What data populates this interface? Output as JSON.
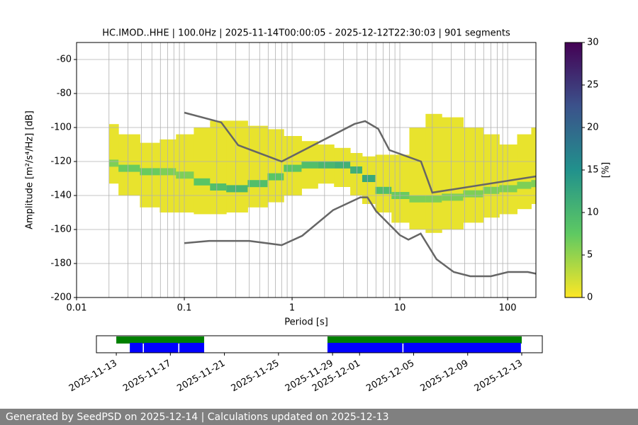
{
  "chart_data": {
    "type": "ppsd",
    "title": "HC.IMOD..HHE | 100.0Hz | 2025-11-14T00:00:05 - 2025-12-12T22:30:03 | 901 segments",
    "xlabel": "Period [s]",
    "ylabel": "Amplitude [m²/s⁴/Hz] [dB]",
    "xscale": "log",
    "xlim": [
      0.01,
      183
    ],
    "xticks": [
      0.01,
      0.1,
      1,
      10,
      100
    ],
    "xgrid": [
      0.02,
      0.03,
      0.04,
      0.05,
      0.06,
      0.07,
      0.08,
      0.09,
      0.1,
      0.2,
      0.3,
      0.4,
      0.5,
      0.6,
      0.7,
      0.8,
      0.9,
      1,
      2,
      3,
      4,
      5,
      6,
      7,
      8,
      9,
      10,
      20,
      30,
      40,
      50,
      60,
      70,
      80,
      90,
      100
    ],
    "ylim": [
      -200,
      -50
    ],
    "yticks": [
      -200,
      -180,
      -160,
      -140,
      -120,
      -100,
      -80,
      -60
    ],
    "grid": true,
    "colorbar": {
      "label": "[%]",
      "lim": [
        0,
        30
      ],
      "ticks": [
        0,
        5,
        10,
        15,
        20,
        25,
        30
      ],
      "colormap": [
        "#fde725",
        "#5ec962",
        "#21918c",
        "#3b528b",
        "#440154"
      ]
    },
    "density": {
      "periods": [
        0.02,
        0.03,
        0.05,
        0.07,
        0.1,
        0.15,
        0.2,
        0.3,
        0.5,
        0.7,
        1,
        1.5,
        2,
        3,
        4,
        5,
        7,
        10,
        15,
        20,
        30,
        50,
        70,
        100,
        150,
        183
      ],
      "upper": [
        -98,
        -104,
        -109,
        -107,
        -104,
        -100,
        -96,
        -96,
        -99,
        -101,
        -105,
        -108,
        -110,
        -112,
        -115,
        -117,
        -116,
        -116,
        -100,
        -92,
        -94,
        -100,
        -104,
        -110,
        -104,
        -100
      ],
      "lower": [
        -133,
        -140,
        -147,
        -150,
        -150,
        -151,
        -151,
        -150,
        -147,
        -144,
        -140,
        -136,
        -133,
        -135,
        -140,
        -145,
        -150,
        -156,
        -160,
        -162,
        -160,
        -156,
        -153,
        -151,
        -148,
        -145
      ],
      "mode": [
        -121,
        -124,
        -126,
        -126,
        -128,
        -132,
        -135,
        -136,
        -133,
        -129,
        -124,
        -122,
        -122,
        -122,
        -125,
        -130,
        -137,
        -140,
        -142,
        -142,
        -141,
        -139,
        -137,
        -136,
        -134,
        -133
      ],
      "mode_percent": [
        6,
        7,
        7,
        6,
        6,
        8,
        9,
        10,
        9,
        8,
        8,
        9,
        10,
        11,
        11,
        12,
        9,
        7,
        6,
        6,
        6,
        6,
        6,
        6,
        6,
        6
      ]
    },
    "series": [
      {
        "color": "#666666",
        "x": [
          0.1,
          0.22,
          0.316,
          0.8,
          3.8,
          4.76,
          6.3,
          8.0,
          15.7,
          20,
          183
        ],
        "values": [
          -91.25,
          -97,
          -110.4,
          -120,
          -97.9,
          -96.25,
          -100.8,
          -113.3,
          -120,
          -138.3,
          -128.75
        ]
      },
      {
        "color": "#666666",
        "x": [
          0.1,
          0.17,
          0.4,
          0.8,
          1.24,
          2.4,
          4.3,
          5.0,
          6.0,
          10,
          12,
          15.6,
          21.9,
          31.6,
          45,
          70,
          101,
          154,
          183
        ],
        "values": [
          -168,
          -166.7,
          -166.7,
          -169.2,
          -163.7,
          -148.6,
          -141.1,
          -141.1,
          -149.1,
          -163.3,
          -166,
          -162.4,
          -177.5,
          -185,
          -187.5,
          -187.5,
          -185,
          -185,
          -186
        ]
      }
    ],
    "timeline": {
      "xlim": [
        "2025-11-11T12:40",
        "2025-12-14T12:30"
      ],
      "xticks": [
        "2025-11-13",
        "2025-11-17",
        "2025-11-21",
        "2025-11-25",
        "2025-11-29",
        "2025-12-01",
        "2025-12-05",
        "2025-12-09",
        "2025-12-13"
      ],
      "available": {
        "color": "#008000",
        "spans": [
          [
            "2025-11-13T00:00",
            "2025-11-19T12:00"
          ],
          [
            "2025-11-28T15:00",
            "2025-12-13T00:00"
          ]
        ]
      },
      "used": {
        "color": "#0000ff",
        "spans": [
          [
            "2025-11-14T00:00",
            "2025-11-14T23:00"
          ],
          [
            "2025-11-15T01:00",
            "2025-11-17T14:00"
          ],
          [
            "2025-11-17T16:00",
            "2025-11-19T12:00"
          ],
          [
            "2025-11-28T15:00",
            "2025-12-04T04:00"
          ],
          [
            "2025-12-04T06:00",
            "2025-12-12T22:30"
          ]
        ]
      }
    },
    "footer": "Generated by SeedPSD on 2025-12-14 | Calculations updated on 2025-12-13"
  }
}
